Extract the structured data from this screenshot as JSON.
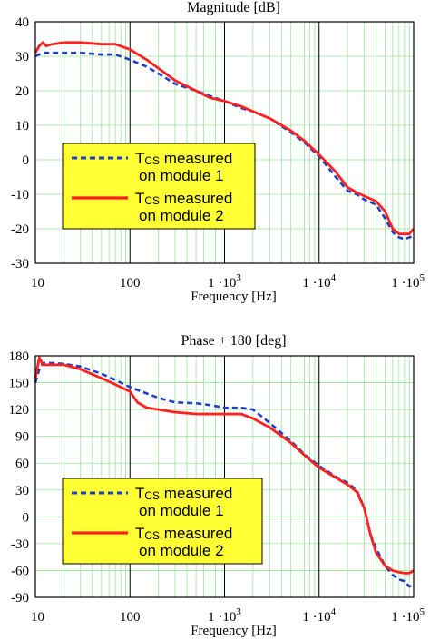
{
  "chart_data": [
    {
      "type": "line",
      "title": "Magnitude [dB]",
      "xlabel": "Frequency [Hz]",
      "ylabel": "",
      "xscale": "log",
      "xlim": [
        10,
        100000
      ],
      "ylim": [
        -30,
        40
      ],
      "yticks": [
        40,
        30,
        20,
        10,
        0,
        -10,
        -20,
        -30
      ],
      "xticks": [
        {
          "value": 10,
          "main": "10",
          "sup": ""
        },
        {
          "value": 100,
          "main": "100",
          "sup": ""
        },
        {
          "value": 1000,
          "main": "1 ·10",
          "sup": "3"
        },
        {
          "value": 10000,
          "main": "1 ·10",
          "sup": "4"
        },
        {
          "value": 100000,
          "main": "1 ·10",
          "sup": "5"
        }
      ],
      "grid": true,
      "legend_position": "lower-left",
      "legend": [
        {
          "main": "T",
          "sub": "CS",
          "rest": " measured",
          "line2": "on module 1"
        },
        {
          "main": "T",
          "sub": "CS",
          "rest": " measured",
          "line2": "on module 2"
        }
      ],
      "series": [
        {
          "style": "dashed",
          "color": "#1f3ec8",
          "x": [
            10,
            12,
            15,
            20,
            30,
            50,
            70,
            100,
            150,
            200,
            300,
            500,
            700,
            1000,
            1500,
            2000,
            3000,
            5000,
            7000,
            10000,
            15000,
            20000,
            25000,
            30000,
            40000,
            50000,
            60000,
            70000,
            80000,
            90000,
            100000
          ],
          "y": [
            30,
            31,
            31,
            31,
            31,
            30.5,
            30.5,
            29,
            27,
            25,
            22,
            20,
            18.5,
            17,
            15,
            14,
            12,
            8,
            5,
            1,
            -5,
            -9,
            -10,
            -11.5,
            -13,
            -17,
            -21,
            -22.5,
            -23,
            -22.5,
            -22
          ]
        },
        {
          "style": "solid",
          "color": "#ff2020",
          "x": [
            10,
            11,
            12,
            13,
            15,
            20,
            30,
            50,
            70,
            100,
            150,
            200,
            300,
            500,
            700,
            1000,
            1500,
            2000,
            3000,
            5000,
            7000,
            10000,
            15000,
            20000,
            25000,
            30000,
            40000,
            50000,
            60000,
            70000,
            80000,
            90000,
            100000
          ],
          "y": [
            31,
            33,
            34,
            33,
            33.5,
            34,
            34,
            33.5,
            33.5,
            32,
            29,
            26.5,
            23,
            20,
            18,
            17,
            15.5,
            14,
            12,
            8.5,
            5.5,
            1.5,
            -3.5,
            -8,
            -9.5,
            -10.5,
            -12,
            -15,
            -20,
            -21.5,
            -21.5,
            -21.5,
            -20
          ]
        }
      ]
    },
    {
      "type": "line",
      "title": "Phase + 180 [deg]",
      "xlabel": "Frequency [Hz]",
      "ylabel": "",
      "xscale": "log",
      "xlim": [
        10,
        100000
      ],
      "ylim": [
        -90,
        180
      ],
      "yticks": [
        180,
        150,
        120,
        90,
        60,
        30,
        0,
        -30,
        -60,
        -90
      ],
      "xticks": [
        {
          "value": 10,
          "main": "10",
          "sup": ""
        },
        {
          "value": 100,
          "main": "100",
          "sup": ""
        },
        {
          "value": 1000,
          "main": "1 ·10",
          "sup": "3"
        },
        {
          "value": 10000,
          "main": "1 ·10",
          "sup": "4"
        },
        {
          "value": 100000,
          "main": "1 ·10",
          "sup": "5"
        }
      ],
      "grid": true,
      "legend_position": "lower-left",
      "legend": [
        {
          "main": "T",
          "sub": "CS",
          "rest": " measured",
          "line2": "on module 1"
        },
        {
          "main": "T",
          "sub": "CS",
          "rest": " measured",
          "line2": "on module 2"
        }
      ],
      "series": [
        {
          "style": "dashed",
          "color": "#1f3ec8",
          "x": [
            10,
            11,
            12,
            15,
            20,
            30,
            50,
            70,
            100,
            150,
            200,
            300,
            500,
            700,
            1000,
            1500,
            2000,
            3000,
            5000,
            7000,
            10000,
            15000,
            20000,
            25000,
            30000,
            35000,
            40000,
            50000,
            60000,
            70000,
            80000,
            90000,
            100000
          ],
          "y": [
            150,
            165,
            172,
            172,
            171,
            168,
            160,
            153,
            145,
            138,
            133,
            128,
            127,
            125,
            122,
            122,
            120,
            105,
            85,
            70,
            57,
            45,
            38,
            30,
            10,
            -20,
            -35,
            -55,
            -65,
            -70,
            -72,
            -78,
            -75
          ]
        },
        {
          "style": "solid",
          "color": "#ff2020",
          "x": [
            10,
            11,
            12,
            15,
            20,
            30,
            50,
            70,
            100,
            120,
            150,
            200,
            300,
            500,
            700,
            1000,
            1500,
            2000,
            3000,
            5000,
            7000,
            10000,
            15000,
            20000,
            25000,
            30000,
            35000,
            40000,
            50000,
            60000,
            70000,
            80000,
            90000,
            100000
          ],
          "y": [
            155,
            178,
            170,
            170,
            170,
            165,
            155,
            148,
            140,
            128,
            122,
            120,
            117,
            115,
            115,
            115,
            115,
            110,
            100,
            83,
            69,
            55,
            44,
            36,
            28,
            10,
            -20,
            -40,
            -55,
            -60,
            -62,
            -63,
            -63,
            -60
          ]
        }
      ]
    }
  ]
}
